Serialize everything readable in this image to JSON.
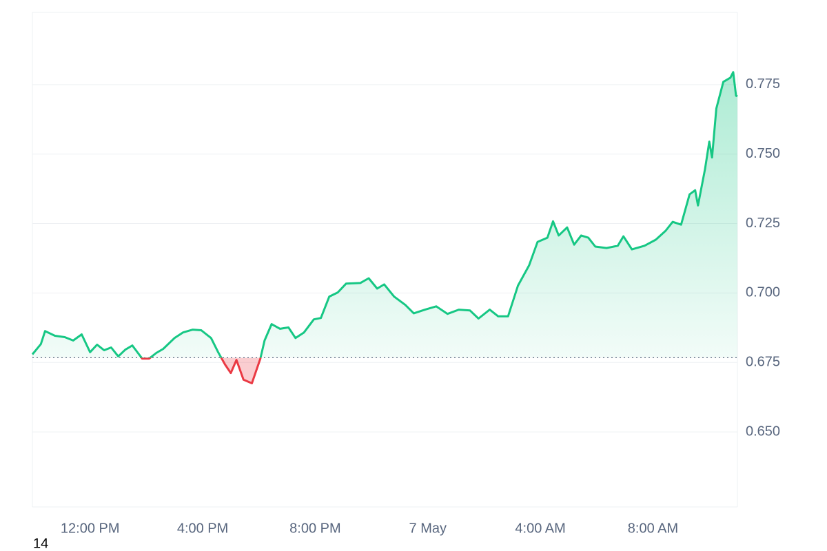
{
  "chart_data": {
    "type": "line",
    "x": [
      -2.05,
      -1.75,
      -1.6,
      -1.25,
      -0.9,
      -0.6,
      -0.3,
      0,
      0.25,
      0.5,
      0.75,
      1,
      1.25,
      1.5,
      1.85,
      2.1,
      2.35,
      2.6,
      3,
      3.3,
      3.65,
      3.95,
      4.3,
      4.55,
      4.8,
      5,
      5.2,
      5.45,
      5.75,
      6.05,
      6.2,
      6.45,
      6.75,
      7.05,
      7.3,
      7.6,
      7.95,
      8.2,
      8.5,
      8.8,
      9.1,
      9.6,
      9.9,
      10.2,
      10.45,
      10.8,
      11.2,
      11.5,
      11.9,
      12.3,
      12.7,
      13.1,
      13.5,
      13.8,
      14.2,
      14.5,
      14.85,
      15.2,
      15.6,
      15.9,
      16.25,
      16.45,
      16.65,
      16.95,
      17.2,
      17.45,
      17.7,
      17.95,
      18.35,
      18.75,
      18.95,
      19.25,
      19.7,
      20.1,
      20.45,
      20.7,
      21,
      21.3,
      21.5,
      21.6,
      21.85,
      22,
      22.1,
      22.25,
      22.5,
      22.75,
      22.85,
      22.95,
      23
    ],
    "values": [
      0.6779,
      0.6816,
      0.6863,
      0.6846,
      0.6841,
      0.6829,
      0.6851,
      0.6787,
      0.6814,
      0.6794,
      0.6804,
      0.6772,
      0.6796,
      0.6811,
      0.6764,
      0.6764,
      0.6784,
      0.6799,
      0.6838,
      0.6858,
      0.6868,
      0.6866,
      0.6838,
      0.6787,
      0.6742,
      0.6712,
      0.6759,
      0.6688,
      0.6675,
      0.6764,
      0.6829,
      0.6888,
      0.6871,
      0.6876,
      0.6838,
      0.6858,
      0.6905,
      0.691,
      0.6987,
      0.7002,
      0.7034,
      0.7036,
      0.7053,
      0.7016,
      0.7031,
      0.6987,
      0.6957,
      0.6927,
      0.694,
      0.6952,
      0.6925,
      0.694,
      0.6937,
      0.6908,
      0.694,
      0.6916,
      0.6916,
      0.7026,
      0.71,
      0.7184,
      0.7199,
      0.7258,
      0.7207,
      0.7236,
      0.7174,
      0.7207,
      0.7199,
      0.7167,
      0.7162,
      0.717,
      0.7204,
      0.7157,
      0.717,
      0.7192,
      0.7224,
      0.7256,
      0.7246,
      0.7355,
      0.737,
      0.7315,
      0.7446,
      0.7545,
      0.7488,
      0.7664,
      0.776,
      0.7775,
      0.7795,
      0.771,
      0.7708
    ],
    "baseline": 0.6767,
    "up_color": "#16c784",
    "down_color": "#ea3943",
    "xlim": [
      -2.05,
      23.0
    ],
    "xticks": [
      {
        "value": 0,
        "label": "12:00 PM"
      },
      {
        "value": 4,
        "label": "4:00 PM"
      },
      {
        "value": 8,
        "label": "8:00 PM"
      },
      {
        "value": 12,
        "label": "7 May"
      },
      {
        "value": 16,
        "label": "4:00 AM"
      },
      {
        "value": 20,
        "label": "8:00 AM"
      }
    ],
    "ylim": [
      0.623,
      0.801
    ],
    "yticks": [
      {
        "value": 0.65,
        "label": "0.650"
      },
      {
        "value": 0.675,
        "label": "0.675"
      },
      {
        "value": 0.7,
        "label": "0.700"
      },
      {
        "value": 0.725,
        "label": "0.725"
      },
      {
        "value": 0.75,
        "label": "0.750"
      },
      0.775
    ],
    "grid": true
  },
  "footnote": "14"
}
